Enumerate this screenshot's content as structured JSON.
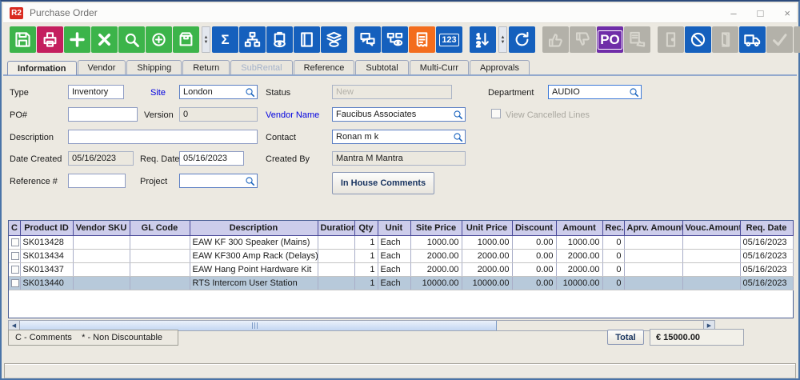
{
  "window": {
    "title": "Purchase Order",
    "logo": "R2",
    "controls": {
      "minimize": "–",
      "maximize": "□",
      "close": "×"
    }
  },
  "toolbar": {
    "items": [
      {
        "name": "save-button",
        "icon": "floppy-icon",
        "style": "green",
        "enabled": true
      },
      {
        "name": "print-button",
        "icon": "printer-icon",
        "style": "crimson",
        "enabled": true
      },
      {
        "name": "add-button",
        "icon": "plus-icon",
        "style": "green",
        "enabled": true
      },
      {
        "name": "delete-button",
        "icon": "x-icon",
        "style": "green",
        "enabled": true
      },
      {
        "name": "search-button",
        "icon": "magnifier-icon",
        "style": "green",
        "enabled": true
      },
      {
        "name": "zoom-in-button",
        "icon": "circle-plus-icon",
        "style": "green",
        "enabled": true
      },
      {
        "name": "package-button",
        "icon": "package-icon",
        "style": "green",
        "enabled": true
      },
      {
        "type": "spinner"
      },
      {
        "name": "totals-button",
        "icon": "sigma-icon",
        "style": "blue",
        "enabled": true,
        "glyph": "Σ"
      },
      {
        "name": "hierarchy-button",
        "icon": "hierarchy-icon",
        "style": "blue",
        "enabled": true
      },
      {
        "name": "view-package-button",
        "icon": "box-eye-icon",
        "style": "blue",
        "enabled": true
      },
      {
        "name": "catalog-button",
        "icon": "book-icon",
        "style": "blue",
        "enabled": true
      },
      {
        "name": "view-layers-button",
        "icon": "layers-eye-icon",
        "style": "blue",
        "enabled": true
      },
      {
        "type": "gap"
      },
      {
        "name": "comments-button",
        "icon": "chat-icon",
        "style": "blue",
        "enabled": true
      },
      {
        "name": "view-flow-button",
        "icon": "flow-eye-icon",
        "style": "blue",
        "enabled": true
      },
      {
        "name": "receipt-button",
        "icon": "receipt-icon",
        "style": "orange",
        "enabled": true
      },
      {
        "name": "numbers-button",
        "icon": "one-two-three-icon",
        "style": "blue",
        "enabled": true,
        "glyph": "123"
      },
      {
        "type": "gap"
      },
      {
        "name": "sort-button",
        "icon": "sort-icon",
        "style": "blue",
        "enabled": true
      },
      {
        "type": "spinner"
      },
      {
        "name": "refresh-button",
        "icon": "refresh-icon",
        "style": "blue",
        "enabled": true
      },
      {
        "type": "gap"
      },
      {
        "name": "approve-button",
        "icon": "thumbs-up-icon",
        "style": "gray",
        "enabled": false
      },
      {
        "name": "reject-button",
        "icon": "thumbs-down-icon",
        "style": "gray",
        "enabled": false
      },
      {
        "name": "po-document-button",
        "icon": "po-document-icon",
        "style": "purple",
        "enabled": true,
        "glyph": "PO"
      },
      {
        "name": "approval-doc-button",
        "icon": "doc-thumb-icon",
        "style": "gray",
        "enabled": false
      },
      {
        "type": "gap"
      },
      {
        "name": "door-closed-button",
        "icon": "door-closed-icon",
        "style": "gray",
        "enabled": false
      },
      {
        "name": "cancel-lines-button",
        "icon": "prohibit-icon",
        "style": "blue",
        "enabled": true
      },
      {
        "name": "door-open-button",
        "icon": "door-open-icon",
        "style": "gray",
        "enabled": false
      },
      {
        "name": "shipping-button",
        "icon": "truck-icon",
        "style": "blue",
        "enabled": true
      },
      {
        "name": "confirm-button",
        "icon": "check-icon",
        "style": "gray",
        "enabled": false
      },
      {
        "name": "barcode-button",
        "icon": "barcode-icon",
        "style": "gray",
        "enabled": false
      }
    ]
  },
  "tabs": [
    {
      "label": "Information",
      "state": "active"
    },
    {
      "label": "Vendor",
      "state": "normal"
    },
    {
      "label": "Shipping",
      "state": "normal"
    },
    {
      "label": "Return",
      "state": "normal"
    },
    {
      "label": "SubRental",
      "state": "disabled"
    },
    {
      "label": "Reference",
      "state": "normal"
    },
    {
      "label": "Subtotal",
      "state": "normal"
    },
    {
      "label": "Multi-Curr",
      "state": "normal"
    },
    {
      "label": "Approvals",
      "state": "normal"
    }
  ],
  "form": {
    "type": {
      "label": "Type",
      "value": "Inventory"
    },
    "site": {
      "label": "Site",
      "value": "London"
    },
    "status": {
      "label": "Status",
      "value": "New"
    },
    "department": {
      "label": "Department",
      "value": "AUDIO"
    },
    "po_number": {
      "label": "PO#",
      "value": ""
    },
    "version": {
      "label": "Version",
      "value": "0"
    },
    "vendor_name": {
      "label": "Vendor Name",
      "value": "Faucibus Associates"
    },
    "view_cancelled": {
      "label": "View Cancelled Lines",
      "checked": false
    },
    "description": {
      "label": "Description",
      "value": ""
    },
    "contact": {
      "label": "Contact",
      "value": "Ronan m k"
    },
    "date_created": {
      "label": "Date Created",
      "value": "05/16/2023"
    },
    "req_date": {
      "label": "Req. Date",
      "value": "05/16/2023"
    },
    "created_by": {
      "label": "Created By",
      "value": "Mantra M Mantra"
    },
    "reference": {
      "label": "Reference #",
      "value": ""
    },
    "project": {
      "label": "Project",
      "value": ""
    },
    "in_house_comments_label": "In House Comments"
  },
  "table": {
    "columns": [
      "C",
      "Product ID",
      "Vendor SKU",
      "GL Code",
      "Description",
      "Duration",
      "Qty",
      "Unit",
      "Site Price",
      "Unit Price",
      "Discount",
      "Amount",
      "Rec.",
      "Aprv. Amount",
      "Vouc.Amount",
      "Req. Date"
    ],
    "rows": [
      {
        "product_id": "SK013428",
        "vendor_sku": "",
        "gl_code": "",
        "description": "EAW KF 300 Speaker (Mains)",
        "duration": "",
        "qty": "1",
        "unit": "Each",
        "site_price": "1000.00",
        "unit_price": "1000.00",
        "discount": "0.00",
        "amount": "1000.00",
        "rec": "0",
        "aprv_amount": "",
        "vouc_amount": "",
        "req_date": "05/16/2023",
        "selected": false
      },
      {
        "product_id": "SK013434",
        "vendor_sku": "",
        "gl_code": "",
        "description": "EAW KF300 Amp Rack (Delays)",
        "duration": "",
        "qty": "1",
        "unit": "Each",
        "site_price": "2000.00",
        "unit_price": "2000.00",
        "discount": "0.00",
        "amount": "2000.00",
        "rec": "0",
        "aprv_amount": "",
        "vouc_amount": "",
        "req_date": "05/16/2023",
        "selected": false
      },
      {
        "product_id": "SK013437",
        "vendor_sku": "",
        "gl_code": "",
        "description": "EAW Hang Point Hardware Kit",
        "duration": "",
        "qty": "1",
        "unit": "Each",
        "site_price": "2000.00",
        "unit_price": "2000.00",
        "discount": "0.00",
        "amount": "2000.00",
        "rec": "0",
        "aprv_amount": "",
        "vouc_amount": "",
        "req_date": "05/16/2023",
        "selected": false
      },
      {
        "product_id": "SK013440",
        "vendor_sku": "",
        "gl_code": "",
        "description": "RTS Intercom User Station",
        "duration": "",
        "qty": "1",
        "unit": "Each",
        "site_price": "10000.00",
        "unit_price": "10000.00",
        "discount": "0.00",
        "amount": "10000.00",
        "rec": "0",
        "aprv_amount": "",
        "vouc_amount": "",
        "req_date": "05/16/2023",
        "selected": true
      }
    ]
  },
  "footer": {
    "legend": "C - Comments    * - Non Discountable",
    "total_label": "Total",
    "total_value": "€ 15000.00"
  },
  "colors": {
    "green": "#3cb44a",
    "crimson": "#c41f5e",
    "blue": "#1560bd",
    "orange": "#f36d1d",
    "purple": "#6f2da8",
    "disabled": "#b3b1a9",
    "selected_row": "#b7c9da",
    "header_bg": "#cdcdeb"
  }
}
